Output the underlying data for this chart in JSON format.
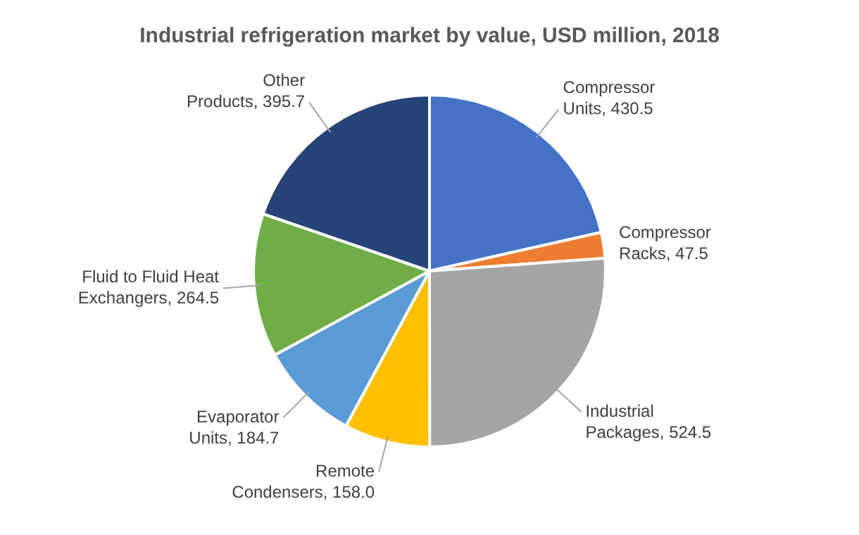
{
  "chart_data": {
    "type": "pie",
    "title": "Industrial refrigeration market by value, USD million, 2018",
    "categories": [
      "Compressor Units",
      "Compressor Racks",
      "Industrial Packages",
      "Remote Condensers",
      "Evaporator Units",
      "Fluid to Fluid Heat Exchangers",
      "Other Products"
    ],
    "values": [
      430.5,
      47.5,
      524.5,
      158.0,
      184.7,
      264.5,
      395.7
    ],
    "value_labels": [
      "430.5",
      "47.5",
      "524.5",
      "158.0",
      "184.7",
      "264.5",
      "395.7"
    ],
    "colors": [
      "#4472c4",
      "#ed7d31",
      "#a5a5a5",
      "#ffc000",
      "#5b9bd5",
      "#70ad47",
      "#264478"
    ],
    "legend": false
  }
}
